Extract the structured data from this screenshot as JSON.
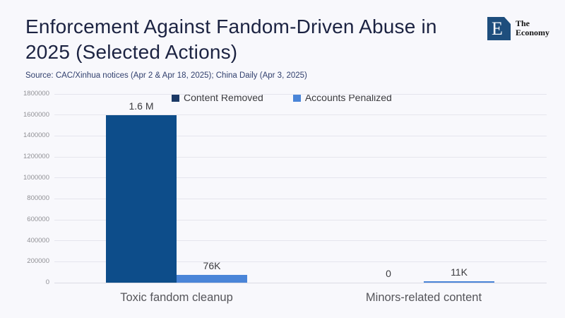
{
  "header": {
    "title": "Enforcement Against Fandom-Driven Abuse in 2025 (Selected Actions)",
    "source": "Source: CAC/Xinhua notices (Apr 2 & Apr 18, 2025); China Daily (Apr 3, 2025)"
  },
  "logo": {
    "letter": "E",
    "name_line1": "The",
    "name_line2": "Economy"
  },
  "chart_data": {
    "type": "bar",
    "title": "Enforcement Against Fandom-Driven Abuse in 2025 (Selected Actions)",
    "categories": [
      "Toxic fandom cleanup",
      "Minors-related content"
    ],
    "series": [
      {
        "name": "Content Removed",
        "values": [
          1600000,
          0
        ],
        "labels": [
          "1.6 M",
          "0"
        ],
        "bar_color": "#0d4d8a",
        "legend_color": "#1c3a66"
      },
      {
        "name": "Accounts Penalized",
        "values": [
          76000,
          11000
        ],
        "labels": [
          "76K",
          "11K"
        ],
        "bar_color": "#4a85d8",
        "legend_color": "#4a85d8"
      }
    ],
    "xlabel": "",
    "ylabel": "",
    "ylim": [
      0,
      1800000
    ],
    "yticks": [
      0,
      200000,
      400000,
      600000,
      800000,
      1000000,
      1200000,
      1400000,
      1600000,
      1800000
    ],
    "grid": true,
    "legend_position": "top"
  },
  "colors": {
    "background": "#f8f8fc",
    "title": "#1c2342",
    "source": "#303f6d",
    "gridline": "#e5e5ed",
    "axis_tick": "#909095",
    "value_label": "#3b3b3f",
    "category_label": "#55555a",
    "logo_square": "#1e4e7d"
  }
}
